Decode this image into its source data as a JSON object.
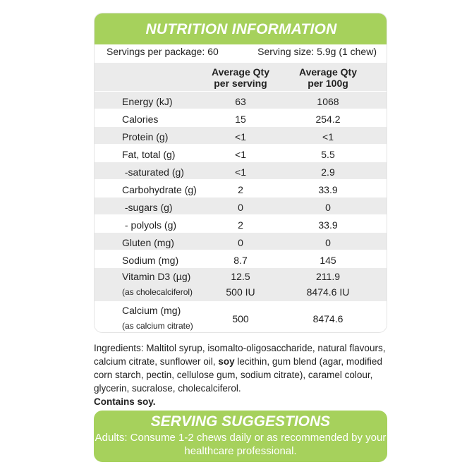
{
  "header": {
    "title": "NUTRITION INFORMATION"
  },
  "servings": {
    "per_package": "Servings per package: 60",
    "size": "Serving size: 5.9g (1 chew)"
  },
  "table": {
    "columns": [
      [
        "Average Qty",
        "per serving"
      ],
      [
        "Average Qty",
        "per 100g"
      ]
    ],
    "rows": [
      [
        "Energy (kJ)",
        "63",
        "1068"
      ],
      [
        "Calories",
        "15",
        "254.2"
      ],
      [
        "Protein (g)",
        "<1",
        "<1"
      ],
      [
        "Fat, total (g)",
        "<1",
        "5.5"
      ],
      [
        " -saturated (g)",
        "<1",
        "2.9"
      ],
      [
        "Carbohydrate (g)",
        "2",
        "33.9"
      ],
      [
        " -sugars (g)",
        "0",
        "0"
      ],
      [
        " - polyols (g)",
        "2",
        "33.9"
      ],
      [
        "Gluten (mg)",
        "0",
        "0"
      ],
      [
        "Sodium (mg)",
        "8.7",
        "145"
      ],
      [
        [
          "Vitamin D3 (µg)",
          "(as cholecalciferol)"
        ],
        [
          "12.5",
          "500 IU"
        ],
        [
          "211.9",
          "8474.6 IU"
        ]
      ],
      [
        [
          "Calcium (mg)",
          "(as calcium citrate)"
        ],
        "500",
        "8474.6"
      ]
    ]
  },
  "ingredients": {
    "parts": [
      "Ingredients: Maltitol syrup, isomalto-oligosaccharide, natural flavours, calcium citrate, sunflower oil, ",
      "soy",
      " lecithin, gum blend (agar, modified corn starch, pectin, cellulose gum, sodium citrate), caramel colour, glycerin, sucralose, cholecalciferol."
    ],
    "contains": "Contains soy."
  },
  "serving_suggestions": {
    "title": "SERVING SUGGESTIONS",
    "text": "Adults: Consume 1-2 chews daily or as recommended by your healthcare professional."
  }
}
